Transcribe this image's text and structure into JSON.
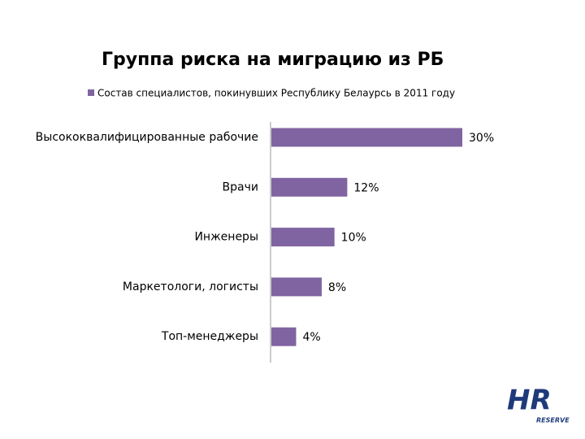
{
  "chart_data": {
    "type": "bar",
    "orientation": "horizontal",
    "title": "Группа риска на миграцию из РБ",
    "series": [
      {
        "name": "Состав специалистов, покинувших Республику Белаурсь в 2011 году",
        "color": "#8064a2",
        "values": [
          30,
          12,
          10,
          8,
          4
        ],
        "value_labels": [
          "30%",
          "12%",
          "10%",
          "8%",
          "4%"
        ]
      }
    ],
    "categories": [
      "Высококвалифицированные рабочие",
      "Врачи",
      "Инженеры",
      "Маркетологи, логисты",
      "Топ-менеджеры"
    ]
  },
  "logo": {
    "mark": "HR",
    "text": "RESERVE"
  }
}
